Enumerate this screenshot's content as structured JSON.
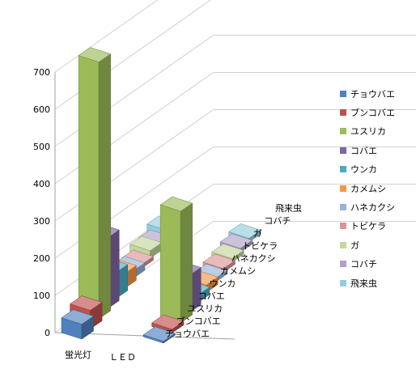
{
  "chart_data": {
    "type": "bar",
    "view": "3d-clustered-depth",
    "categories": [
      "蛍光灯",
      "ＬＥＤ"
    ],
    "series": [
      {
        "name": "チョウバエ",
        "color": "#4f81bd",
        "values": [
          40,
          5
        ]
      },
      {
        "name": "ブンコバエ",
        "color": "#c0504d",
        "values": [
          50,
          10
        ]
      },
      {
        "name": "ユスリカ",
        "color": "#9bbb59",
        "values": [
          690,
          300
        ]
      },
      {
        "name": "コバエ",
        "color": "#8064a2",
        "values": [
          190,
          100
        ]
      },
      {
        "name": "ウンカ",
        "color": "#4bacc6",
        "values": [
          70,
          20
        ]
      },
      {
        "name": "カメムシ",
        "color": "#f79646",
        "values": [
          40,
          20
        ]
      },
      {
        "name": "ハネカクシ",
        "color": "#95b3d7",
        "values": [
          20,
          10
        ]
      },
      {
        "name": "トビケラ",
        "color": "#da9694",
        "values": [
          10,
          10
        ]
      },
      {
        "name": "ガ",
        "color": "#c3d69b",
        "values": [
          20,
          10
        ]
      },
      {
        "name": "コバチ",
        "color": "#b2a1c7",
        "values": [
          10,
          10
        ]
      },
      {
        "name": "飛来虫",
        "color": "#93cddd",
        "values": [
          20,
          10
        ]
      }
    ],
    "yticks": [
      0,
      100,
      200,
      300,
      400,
      500,
      600,
      700
    ],
    "ylim": [
      0,
      700
    ],
    "grid": true,
    "legend": "right",
    "title": "",
    "xlabel": "",
    "ylabel": ""
  }
}
